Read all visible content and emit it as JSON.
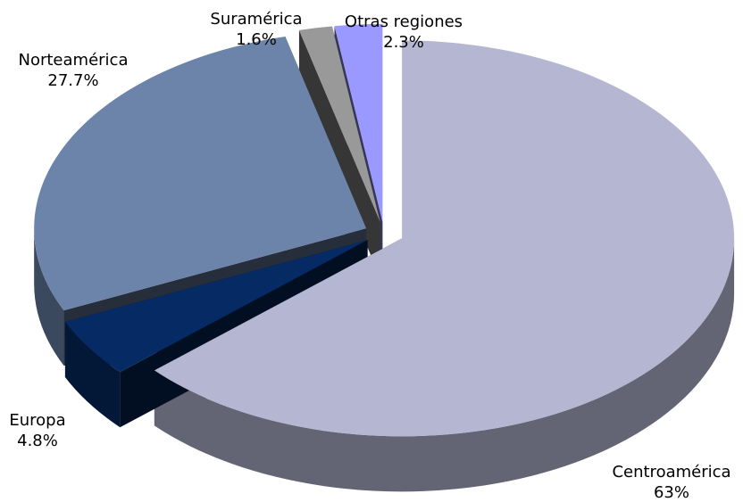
{
  "chart_data": {
    "type": "pie3d",
    "categories": [
      "Centroamérica",
      "Europa",
      "Norteamérica",
      "Suramérica",
      "Otras regiones"
    ],
    "values": [
      63,
      4.8,
      27.7,
      1.6,
      2.3
    ],
    "value_labels": [
      "63%",
      "4.8%",
      "27.7%",
      "1.6%",
      "2.3%"
    ],
    "colors": [
      "#b4b6d2",
      "#062a63",
      "#6c84aa",
      "#999999",
      "#9999ff"
    ]
  }
}
